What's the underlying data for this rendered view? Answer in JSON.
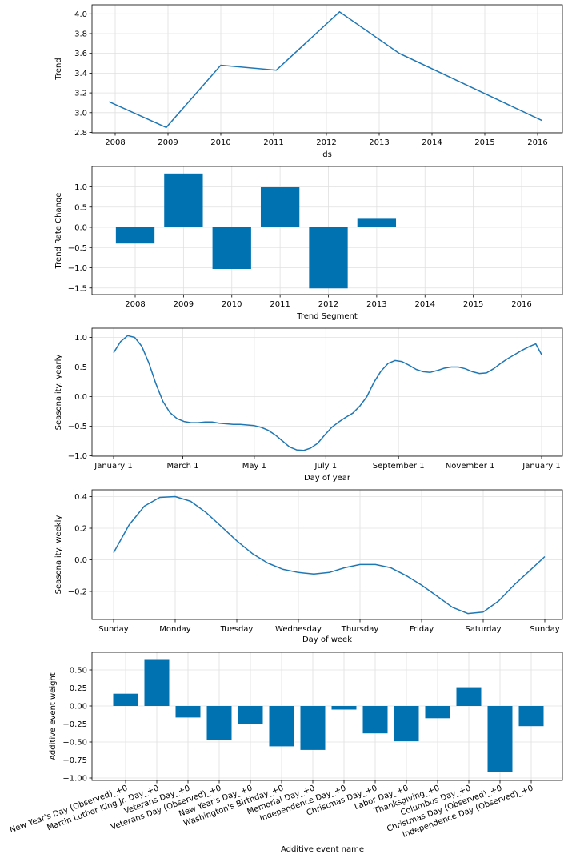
{
  "chart_data": [
    {
      "type": "line",
      "xlabel": "ds",
      "ylabel": "Trend",
      "x": [
        "2007-11-20",
        "2008-12-20",
        "2010-01-01",
        "2011-01-20",
        "2012-04-01",
        "2013-05-20",
        "2016-02-01"
      ],
      "series": [
        {
          "values": [
            3.11,
            2.85,
            3.48,
            3.43,
            4.02,
            3.6,
            2.92
          ]
        }
      ],
      "xticks": [
        "2008",
        "2009",
        "2010",
        "2011",
        "2012",
        "2013",
        "2014",
        "2015",
        "2016"
      ],
      "yticks": [
        "2.8",
        "3.0",
        "3.2",
        "3.4",
        "3.6",
        "3.8",
        "4.0"
      ],
      "ylim": [
        2.78,
        4.08
      ],
      "grid": true,
      "color": "#1f77b4"
    },
    {
      "type": "bar",
      "xlabel": "Trend Segment",
      "ylabel": "Trend Rate Change",
      "categories": [
        "2008",
        "2009",
        "2010",
        "2011",
        "2012",
        "2013"
      ],
      "values": [
        -0.4,
        1.33,
        -1.03,
        0.99,
        -1.51,
        0.23
      ],
      "xticks": [
        "2008",
        "2009",
        "2010",
        "2011",
        "2012",
        "2013",
        "2014",
        "2015",
        "2016"
      ],
      "yticks": [
        "1.0",
        "0.5",
        "0.0",
        "−0.5",
        "−1.0",
        "−1.5"
      ],
      "ylim": [
        -1.67,
        1.48
      ],
      "grid": true,
      "color": "#0072b2"
    },
    {
      "type": "line",
      "xlabel": "Day of year",
      "ylabel": "Seasonality: yearly",
      "x": [
        0,
        6,
        12,
        18,
        24,
        30,
        36,
        42,
        48,
        54,
        60,
        66,
        72,
        78,
        84,
        90,
        96,
        102,
        108,
        114,
        120,
        126,
        132,
        138,
        144,
        150,
        156,
        162,
        168,
        174,
        180,
        186,
        192,
        198,
        204,
        210,
        216,
        222,
        228,
        234,
        240,
        246,
        252,
        258,
        264,
        270,
        276,
        282,
        288,
        294,
        300,
        306,
        312,
        318,
        324,
        330,
        336,
        342,
        348,
        354,
        360,
        365
      ],
      "series": [
        {
          "values": [
            0.74,
            0.93,
            1.03,
            1.0,
            0.85,
            0.57,
            0.22,
            -0.08,
            -0.27,
            -0.37,
            -0.42,
            -0.44,
            -0.44,
            -0.43,
            -0.43,
            -0.45,
            -0.46,
            -0.47,
            -0.47,
            -0.48,
            -0.49,
            -0.52,
            -0.57,
            -0.65,
            -0.75,
            -0.85,
            -0.9,
            -0.91,
            -0.87,
            -0.79,
            -0.65,
            -0.52,
            -0.43,
            -0.35,
            -0.28,
            -0.16,
            0.0,
            0.24,
            0.43,
            0.56,
            0.61,
            0.59,
            0.53,
            0.46,
            0.42,
            0.41,
            0.44,
            0.48,
            0.5,
            0.5,
            0.47,
            0.42,
            0.39,
            0.4,
            0.47,
            0.56,
            0.64,
            0.71,
            0.78,
            0.84,
            0.89,
            0.71
          ]
        }
      ],
      "xticks": [
        "January 1",
        "March 1",
        "May 1",
        "July 1",
        "September 1",
        "November 1",
        "January 1"
      ],
      "yticks": [
        "1.0",
        "0.5",
        "0.0",
        "−0.5",
        "−1.0"
      ],
      "grid": true,
      "color": "#1f77b4"
    },
    {
      "type": "line",
      "xlabel": "Day of week",
      "ylabel": "Seasonality: weekly",
      "x": [
        0,
        0.25,
        0.5,
        0.75,
        1,
        1.25,
        1.5,
        1.75,
        2,
        2.25,
        2.5,
        2.75,
        3,
        3.25,
        3.5,
        3.75,
        4,
        4.25,
        4.5,
        4.75,
        5,
        5.25,
        5.5,
        5.75,
        6,
        6.25,
        6.5,
        6.75,
        7
      ],
      "series": [
        {
          "values": [
            0.045,
            0.22,
            0.34,
            0.395,
            0.4,
            0.37,
            0.3,
            0.21,
            0.12,
            0.04,
            -0.02,
            -0.06,
            -0.08,
            -0.09,
            -0.08,
            -0.05,
            -0.03,
            -0.03,
            -0.05,
            -0.1,
            -0.16,
            -0.23,
            -0.3,
            -0.34,
            -0.33,
            -0.26,
            -0.16,
            -0.07,
            0.02
          ]
        }
      ],
      "xticks": [
        "Sunday",
        "Monday",
        "Tuesday",
        "Wednesday",
        "Thursday",
        "Friday",
        "Saturday",
        "Sunday"
      ],
      "yticks": [
        "0.4",
        "0.2",
        "0.0",
        "−0.2"
      ],
      "grid": true,
      "color": "#1f77b4"
    },
    {
      "type": "bar",
      "xlabel": "Additive event name",
      "ylabel": "Additive event weight",
      "categories": [
        "New Year's Day (Observed)_+0",
        "Martin Luther King Jr. Day_+0",
        "Veterans Day_+0",
        "Veterans Day (Observed)_+0",
        "New Year's Day_+0",
        "Washington's Birthday_+0",
        "Memorial Day_+0",
        "Independence Day_+0",
        "Christmas Day_+0",
        "Labor Day_+0",
        "Thanksgiving_+0",
        "Columbus Day_+0",
        "Christmas Day (Observed)_+0",
        "Independence Day (Observed)_+0"
      ],
      "values": [
        0.17,
        0.65,
        -0.16,
        -0.47,
        -0.25,
        -0.56,
        -0.61,
        -0.05,
        -0.38,
        -0.49,
        -0.17,
        0.26,
        -0.92,
        -0.28
      ],
      "yticks": [
        "0.50",
        "0.25",
        "0.00",
        "−0.25",
        "−0.50",
        "−0.75",
        "−1.00"
      ],
      "grid": true,
      "color": "#0072b2"
    }
  ]
}
